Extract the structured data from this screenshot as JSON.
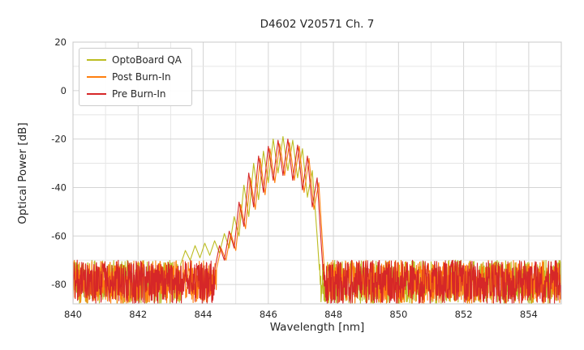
{
  "chart_data": {
    "type": "line",
    "title": "D4602 V20571 Ch. 7",
    "xlabel": "Wavelength [nm]",
    "ylabel": "Optical Power [dB]",
    "xlim": [
      840,
      855
    ],
    "ylim": [
      -88,
      20
    ],
    "xticks": [
      840,
      842,
      844,
      846,
      848,
      850,
      852,
      854
    ],
    "yticks": [
      20,
      0,
      -20,
      -40,
      -60,
      -80
    ],
    "grid": true,
    "legend_position": "upper left",
    "background_color": "#ffffff",
    "noise": {
      "top_db": -70,
      "bottom_db": -88,
      "sample_step_nm": 0.01
    },
    "series": [
      {
        "name": "OptoBoard QA",
        "color": "#bcbd22",
        "envelope": [
          [
            843.3,
            -72
          ],
          [
            843.45,
            -66
          ],
          [
            843.6,
            -70
          ],
          [
            843.75,
            -64
          ],
          [
            843.9,
            -69
          ],
          [
            844.05,
            -63
          ],
          [
            844.2,
            -68
          ],
          [
            844.35,
            -62
          ],
          [
            844.5,
            -67
          ],
          [
            844.65,
            -59
          ],
          [
            844.8,
            -65
          ],
          [
            844.95,
            -52
          ],
          [
            845.1,
            -60
          ],
          [
            845.25,
            -39
          ],
          [
            845.4,
            -52
          ],
          [
            845.55,
            -30
          ],
          [
            845.7,
            -45
          ],
          [
            845.85,
            -25
          ],
          [
            846.0,
            -38
          ],
          [
            846.15,
            -20
          ],
          [
            846.3,
            -34
          ],
          [
            846.45,
            -19
          ],
          [
            846.6,
            -33
          ],
          [
            846.75,
            -20.5
          ],
          [
            846.9,
            -36
          ],
          [
            847.05,
            -24
          ],
          [
            847.2,
            -44
          ],
          [
            847.35,
            -33
          ],
          [
            847.5,
            -60
          ],
          [
            847.6,
            -80
          ]
        ]
      },
      {
        "name": "Post Burn-In",
        "color": "#ff7f0e",
        "envelope": [
          [
            844.4,
            -74
          ],
          [
            844.55,
            -65
          ],
          [
            844.7,
            -70
          ],
          [
            844.85,
            -59
          ],
          [
            845.0,
            -66
          ],
          [
            845.15,
            -47
          ],
          [
            845.3,
            -57
          ],
          [
            845.45,
            -36
          ],
          [
            845.6,
            -49
          ],
          [
            845.75,
            -28
          ],
          [
            845.9,
            -43
          ],
          [
            846.05,
            -24
          ],
          [
            846.2,
            -38
          ],
          [
            846.35,
            -22
          ],
          [
            846.5,
            -35
          ],
          [
            846.65,
            -21.5
          ],
          [
            846.8,
            -37
          ],
          [
            846.95,
            -23
          ],
          [
            847.1,
            -42
          ],
          [
            847.25,
            -28
          ],
          [
            847.4,
            -49
          ],
          [
            847.55,
            -38
          ],
          [
            847.67,
            -64
          ],
          [
            847.77,
            -83
          ]
        ]
      },
      {
        "name": "Pre Burn-In",
        "color": "#d62728",
        "envelope": [
          [
            844.35,
            -74
          ],
          [
            844.5,
            -64
          ],
          [
            844.65,
            -70
          ],
          [
            844.8,
            -58
          ],
          [
            844.95,
            -65
          ],
          [
            845.1,
            -46
          ],
          [
            845.25,
            -56
          ],
          [
            845.4,
            -34
          ],
          [
            845.55,
            -48
          ],
          [
            845.7,
            -27
          ],
          [
            845.85,
            -42
          ],
          [
            846.0,
            -23
          ],
          [
            846.15,
            -37
          ],
          [
            846.3,
            -20.5
          ],
          [
            846.45,
            -35
          ],
          [
            846.6,
            -20
          ],
          [
            846.75,
            -37
          ],
          [
            846.9,
            -22.5
          ],
          [
            847.05,
            -41
          ],
          [
            847.2,
            -27
          ],
          [
            847.35,
            -48
          ],
          [
            847.5,
            -36
          ],
          [
            847.62,
            -62
          ],
          [
            847.72,
            -82
          ]
        ]
      }
    ]
  }
}
